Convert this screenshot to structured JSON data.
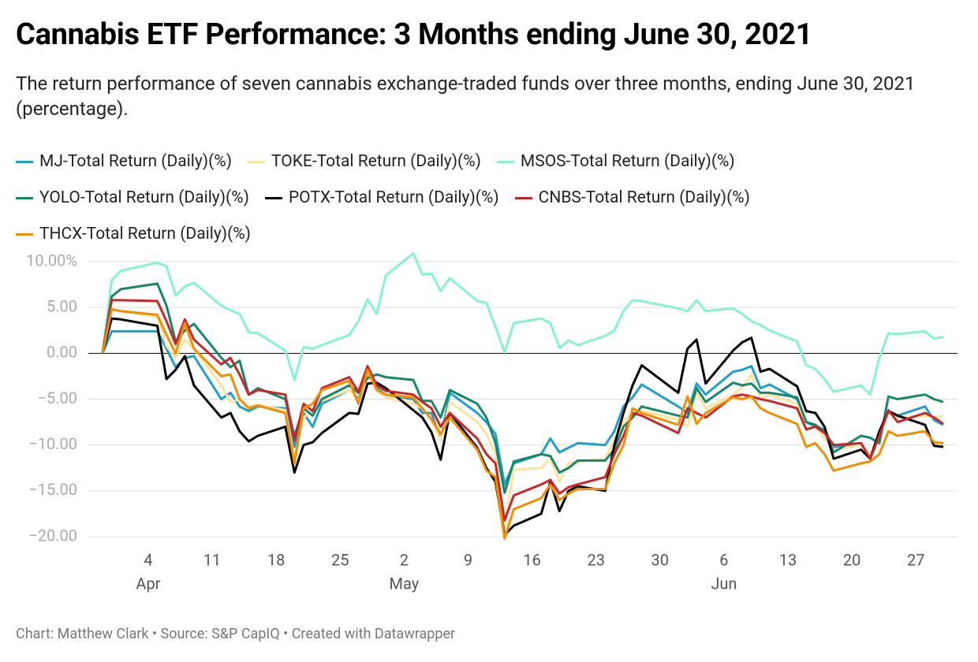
{
  "chart_data": {
    "type": "line",
    "title": "Cannabis ETF Performance: 3 Months ending June 30, 2021",
    "subtitle": "The return performance of seven cannabis exchange-traded funds over three months, ending June 30, 2021 (percentage).",
    "footer": "Chart: Matthew Clark • Source: S&P CapIQ • Created with Datawrapper",
    "x": [
      "2021-03-30",
      "2021-03-31",
      "2021-04-01",
      "2021-04-05",
      "2021-04-06",
      "2021-04-07",
      "2021-04-08",
      "2021-04-09",
      "2021-04-12",
      "2021-04-13",
      "2021-04-14",
      "2021-04-15",
      "2021-04-16",
      "2021-04-19",
      "2021-04-20",
      "2021-04-21",
      "2021-04-22",
      "2021-04-23",
      "2021-04-26",
      "2021-04-27",
      "2021-04-28",
      "2021-04-29",
      "2021-04-30",
      "2021-05-03",
      "2021-05-04",
      "2021-05-05",
      "2021-05-06",
      "2021-05-07",
      "2021-05-10",
      "2021-05-11",
      "2021-05-12",
      "2021-05-13",
      "2021-05-14",
      "2021-05-17",
      "2021-05-18",
      "2021-05-19",
      "2021-05-20",
      "2021-05-21",
      "2021-05-24",
      "2021-05-25",
      "2021-05-26",
      "2021-05-27",
      "2021-05-28",
      "2021-06-01",
      "2021-06-02",
      "2021-06-03",
      "2021-06-04",
      "2021-06-07",
      "2021-06-08",
      "2021-06-09",
      "2021-06-10",
      "2021-06-11",
      "2021-06-14",
      "2021-06-15",
      "2021-06-16",
      "2021-06-17",
      "2021-06-18",
      "2021-06-21",
      "2021-06-22",
      "2021-06-23",
      "2021-06-24",
      "2021-06-25",
      "2021-06-28",
      "2021-06-29",
      "2021-06-30"
    ],
    "xlim": [
      "2021-03-30",
      "2021-06-30"
    ],
    "xticks": [
      {
        "value": "2021-04-04",
        "label": "4"
      },
      {
        "value": "2021-04-11",
        "label": "11"
      },
      {
        "value": "2021-04-18",
        "label": "18"
      },
      {
        "value": "2021-04-25",
        "label": "25"
      },
      {
        "value": "2021-05-02",
        "label": "2"
      },
      {
        "value": "2021-05-09",
        "label": "9"
      },
      {
        "value": "2021-05-16",
        "label": "16"
      },
      {
        "value": "2021-05-23",
        "label": "23"
      },
      {
        "value": "2021-05-30",
        "label": "30"
      },
      {
        "value": "2021-06-06",
        "label": "6"
      },
      {
        "value": "2021-06-13",
        "label": "13"
      },
      {
        "value": "2021-06-20",
        "label": "20"
      },
      {
        "value": "2021-06-27",
        "label": "27"
      }
    ],
    "xmonths": [
      {
        "value": "2021-04-04",
        "label": "Apr"
      },
      {
        "value": "2021-05-02",
        "label": "May"
      },
      {
        "value": "2021-06-06",
        "label": "Jun"
      }
    ],
    "ylim": [
      -20,
      10
    ],
    "yticks": [
      {
        "value": 10,
        "label": "10.00%"
      },
      {
        "value": 5,
        "label": "5.00"
      },
      {
        "value": 0,
        "label": "0.00"
      },
      {
        "value": -5,
        "label": "−5.00"
      },
      {
        "value": -10,
        "label": "−10.00"
      },
      {
        "value": -15,
        "label": "−15.00"
      },
      {
        "value": -20,
        "label": "−20.00"
      }
    ],
    "grid": true,
    "series": [
      {
        "name": "MJ-Total Return (Daily)(%)",
        "color": "#1f9fcc",
        "values": [
          0,
          2.4,
          2.4,
          2.4,
          0.5,
          -1.5,
          -0.5,
          -0.3,
          -5,
          -4.3,
          -5.8,
          -6.3,
          -5.8,
          -6.0,
          -10.2,
          -6.5,
          -8.0,
          -5.5,
          -4.0,
          -5.0,
          -2.0,
          -3.8,
          -4.5,
          -5.0,
          -6.5,
          -6.5,
          -9.5,
          -4.3,
          -6.5,
          -7.5,
          -8.8,
          -14.3,
          -12.0,
          -11.0,
          -9.3,
          -10.8,
          -10.3,
          -9.8,
          -10.0,
          -8.5,
          -5.8,
          -4.8,
          -3.4,
          -5.8,
          -6.5,
          -3.3,
          -4.5,
          -2.0,
          -1.8,
          -1.4,
          -3.8,
          -3.4,
          -5.0,
          -7.5,
          -8.0,
          -8.3,
          -10.3,
          -9.8,
          -11.3,
          -9.0,
          -6.3,
          -6.8,
          -5.8,
          -7.3,
          -7.8
        ]
      },
      {
        "name": "TOKE-Total Return (Daily)(%)",
        "color": "#fde3a0",
        "values": [
          0,
          4.8,
          4.6,
          4.0,
          0.8,
          -0.5,
          1.5,
          0.5,
          -3.5,
          -5.3,
          -5.0,
          -5.8,
          -5.6,
          -6.2,
          -11.5,
          -7.0,
          -6.3,
          -5.2,
          -4.0,
          -5.2,
          -2.3,
          -4.0,
          -4.8,
          -5.5,
          -6.0,
          -7.3,
          -9.5,
          -5.3,
          -7.5,
          -8.8,
          -11.0,
          -19.0,
          -12.7,
          -12.5,
          -11.5,
          -14.0,
          -12.0,
          -11.8,
          -11.5,
          -9.5,
          -7.5,
          -6.5,
          -6.3,
          -7.2,
          -8.0,
          -4.3,
          -6.0,
          -4.5,
          -3.7,
          -2.3,
          -5.0,
          -4.5,
          -5.5,
          -8.3,
          -8.0,
          -9.3,
          -10.5,
          -10.0,
          -11.0,
          -9.0,
          -6.5,
          -7.0,
          -6.8,
          -7.0,
          -6.8
        ]
      },
      {
        "name": "MSOS-Total Return (Daily)(%)",
        "color": "#86f2d3",
        "values": [
          0,
          8,
          9,
          9.9,
          9.5,
          6.3,
          7.3,
          7.7,
          5.2,
          4.7,
          4.3,
          2.3,
          2.2,
          0.3,
          -2.9,
          0.7,
          0.5,
          0.9,
          2.0,
          3.5,
          5.9,
          4.3,
          8.5,
          10.9,
          8.6,
          8.7,
          6.8,
          8.2,
          5.7,
          5.5,
          2.9,
          0.1,
          3.3,
          3.8,
          3.3,
          0.6,
          1.4,
          0.9,
          1.9,
          2.5,
          4.6,
          5.8,
          5.7,
          4.9,
          4.6,
          5.8,
          4.6,
          4.9,
          4.3,
          3.5,
          3.1,
          2.5,
          1.3,
          -1.3,
          -1.7,
          -2.8,
          -4.2,
          -3.5,
          -4.5,
          -0.5,
          2.2,
          2.1,
          2.4,
          1.6,
          1.8
        ]
      },
      {
        "name": "YOLO-Total Return (Daily)(%)",
        "color": "#15876a",
        "values": [
          0,
          6.2,
          7.0,
          7.6,
          5.2,
          1.3,
          2.5,
          3.2,
          -0.5,
          -1.5,
          -0.8,
          -4.5,
          -3.8,
          -5.0,
          -9.0,
          -6.0,
          -6.8,
          -5.0,
          -3.5,
          -4.3,
          -2.7,
          -2.3,
          -2.6,
          -2.9,
          -5.2,
          -5.2,
          -7.0,
          -4.0,
          -5.5,
          -7.0,
          -9.8,
          -15.2,
          -11.8,
          -11.0,
          -11.2,
          -13.0,
          -12.5,
          -11.7,
          -11.7,
          -10.5,
          -8.0,
          -7.0,
          -5.8,
          -6.8,
          -7.0,
          -3.8,
          -5.3,
          -3.2,
          -3.5,
          -3.3,
          -4.3,
          -4.3,
          -4.8,
          -7.5,
          -7.8,
          -8.5,
          -10.8,
          -9.0,
          -9.2,
          -9.8,
          -4.7,
          -5.0,
          -4.5,
          -5.0,
          -5.3
        ]
      },
      {
        "name": "POTX-Total Return (Daily)(%)",
        "color": "#000000",
        "values": [
          0,
          3.8,
          3.7,
          3.0,
          -2.8,
          -1.8,
          -0.3,
          -3.5,
          -7.0,
          -6.5,
          -8.5,
          -9.6,
          -9.0,
          -8.0,
          -13.0,
          -10.0,
          -9.7,
          -8.7,
          -6.5,
          -6.6,
          -3.3,
          -3.2,
          -3.8,
          -6.2,
          -7.0,
          -8.6,
          -11.6,
          -6.5,
          -10.3,
          -12.5,
          -14.0,
          -19.8,
          -18.8,
          -17.5,
          -14.0,
          -17.2,
          -15.0,
          -14.5,
          -15.0,
          -10.0,
          -6.5,
          -3.5,
          -1.3,
          -4.3,
          0.5,
          1.5,
          -3.3,
          0.3,
          1.2,
          1.7,
          -2.0,
          -1.7,
          -3.6,
          -6.3,
          -6.5,
          -8.0,
          -11.5,
          -10.5,
          -11.5,
          -8.5,
          -6.3,
          -6.8,
          -7.8,
          -10.1,
          -10.2
        ]
      },
      {
        "name": "CNBS-Total Return (Daily)(%)",
        "color": "#c8262a",
        "values": [
          0,
          5.8,
          5.8,
          5.7,
          3.5,
          1.0,
          3.7,
          1.5,
          -1.2,
          -0.5,
          -2.3,
          -4.5,
          -4.0,
          -4.5,
          -9.5,
          -5.5,
          -6.3,
          -3.8,
          -2.6,
          -4.2,
          -1.4,
          -3.5,
          -4.1,
          -4.5,
          -5.3,
          -6.0,
          -8.0,
          -6.5,
          -9.3,
          -11.0,
          -12.0,
          -18.2,
          -15.5,
          -14.3,
          -13.8,
          -15.3,
          -14.6,
          -14.3,
          -13.5,
          -11.0,
          -9.0,
          -6.5,
          -6.8,
          -8.7,
          -6.0,
          -6.5,
          -7.0,
          -4.7,
          -4.5,
          -4.7,
          -5.0,
          -5.2,
          -6.0,
          -8.3,
          -8.0,
          -8.7,
          -10.0,
          -9.8,
          -11.5,
          -9.0,
          -6.2,
          -7.5,
          -6.5,
          -7.0,
          -7.7
        ]
      },
      {
        "name": "THCX-Total Return (Daily)(%)",
        "color": "#f28e00",
        "values": [
          0,
          4.8,
          4.6,
          4.2,
          2.0,
          0.0,
          3.3,
          0.5,
          -2.5,
          -2.3,
          -5.0,
          -6.0,
          -5.7,
          -6.5,
          -12.0,
          -6.0,
          -5.5,
          -4.0,
          -3.0,
          -5.5,
          -1.8,
          -4.0,
          -4.5,
          -4.8,
          -6.0,
          -7.2,
          -8.8,
          -7.0,
          -10.5,
          -12.8,
          -13.5,
          -20.2,
          -17.0,
          -15.8,
          -14.3,
          -16.0,
          -15.3,
          -14.8,
          -14.8,
          -12.0,
          -10.0,
          -6.0,
          -6.5,
          -7.8,
          -4.7,
          -7.7,
          -6.5,
          -4.8,
          -5.0,
          -4.7,
          -6.0,
          -6.5,
          -7.7,
          -10.2,
          -9.8,
          -11.0,
          -12.8,
          -12.0,
          -11.8,
          -11.0,
          -8.5,
          -9.0,
          -8.5,
          -9.7,
          -9.8
        ]
      }
    ]
  }
}
